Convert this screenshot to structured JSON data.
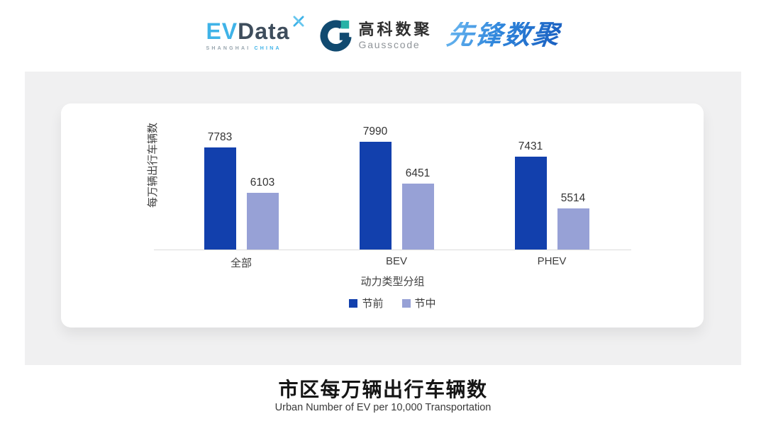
{
  "header": {
    "evdata_logo": {
      "ev": "EV",
      "data": "Data",
      "sub_shanghai": "SHANGHAI",
      "sub_china": "CHINA"
    },
    "gausscode_logo": {
      "name_cn": "高科数聚",
      "name_en": "Gausscode"
    },
    "pioneer_logo": {
      "text": "先锋数聚"
    }
  },
  "chart_data": {
    "type": "bar",
    "categories": [
      "全部",
      "BEV",
      "PHEV"
    ],
    "series": [
      {
        "name": "节前",
        "color": "#1240AD",
        "values": [
          7783,
          7990,
          7431
        ]
      },
      {
        "name": "节中",
        "color": "#97A1D6",
        "values": [
          6103,
          6451,
          5514
        ]
      }
    ],
    "ylabel": "每万辆出行车辆数",
    "xlabel": "动力类型分组",
    "ylim": [
      4000,
      8200
    ],
    "grid": false,
    "legend_position": "bottom",
    "value_labels": true
  },
  "footer": {
    "title": "市区每万辆出行车辆数",
    "subtitle": "Urban Number of EV per 10,000 Transportation"
  },
  "colors": {
    "panel_bg": "#F0F0F1",
    "card_bg": "#FFFFFF",
    "axis_line": "#DCDCDC",
    "series_pre": "#1240AD",
    "series_mid": "#97A1D6",
    "evdata_blue": "#3FB3E8",
    "evdata_dark": "#3E4D5C",
    "gausscode_navy": "#114A70",
    "gausscode_teal": "#27B2A6"
  }
}
